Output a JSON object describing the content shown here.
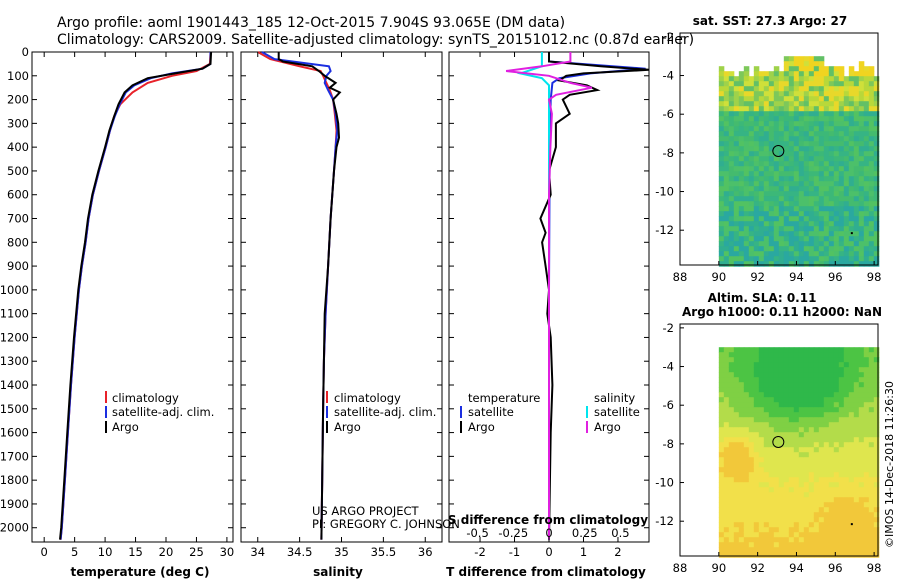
{
  "title": {
    "line1": "Argo profile: aoml 1901443_185 12-Oct-2015 7.904S 93.065E (DM data)",
    "line2": "Climatology: CARS2009. Satellite-adjusted climatology: synTS_20151012.nc (0.87d earlier)"
  },
  "colors": {
    "climatology": "#e8222a",
    "satellite": "#1b2ee0",
    "argo": "#000000",
    "sat_s": "#00e5ee",
    "argo_s": "#e020e0"
  },
  "chart_data": [
    {
      "type": "line",
      "name": "temperature-profile",
      "xlabel": "temperature (deg C)",
      "ylabel": "",
      "xlim": [
        -2,
        31
      ],
      "ylim": [
        2060,
        0
      ],
      "xticks": [
        "0",
        "5",
        "10",
        "15",
        "20",
        "25",
        "30"
      ],
      "yticks": [
        "0",
        "100",
        "200",
        "300",
        "400",
        "500",
        "600",
        "700",
        "800",
        "900",
        "1000",
        "1100",
        "1200",
        "1300",
        "1400",
        "1500",
        "1600",
        "1700",
        "1800",
        "1900",
        "2000"
      ],
      "series": [
        {
          "name": "climatology",
          "depth": [
            0,
            50,
            80,
            100,
            130,
            170,
            220,
            270,
            330,
            400,
            500,
            600,
            700,
            800,
            900,
            1000,
            1200,
            1400,
            1600,
            1800,
            2000,
            2050
          ],
          "values": [
            27.3,
            27.2,
            25,
            21,
            17,
            14.5,
            12.5,
            11.5,
            10.8,
            10.1,
            9.0,
            8.0,
            7.3,
            6.8,
            6.2,
            5.7,
            5.0,
            4.4,
            3.9,
            3.4,
            2.9,
            2.7
          ]
        },
        {
          "name": "satellite-adj. clim.",
          "depth": [
            0,
            50,
            70,
            90,
            110,
            140,
            170,
            220,
            270,
            330,
            400,
            500,
            600,
            700,
            800,
            900,
            1000,
            1200,
            1400,
            1600,
            1800,
            2000,
            2050
          ],
          "values": [
            27.3,
            27.3,
            26,
            21,
            17.5,
            14.8,
            13.4,
            12.4,
            11.6,
            10.8,
            10.1,
            9.0,
            8.0,
            7.3,
            6.8,
            6.2,
            5.7,
            5.0,
            4.4,
            3.9,
            3.4,
            2.9,
            2.7
          ]
        },
        {
          "name": "Argo",
          "depth": [
            0,
            50,
            70,
            90,
            110,
            140,
            170,
            220,
            270,
            330,
            400,
            500,
            600,
            700,
            800,
            900,
            1000,
            1200,
            1400,
            1600,
            1800,
            2000,
            2050
          ],
          "values": [
            27.4,
            27.3,
            26,
            21.5,
            17,
            14.5,
            13.2,
            12.2,
            11.5,
            10.7,
            10.0,
            8.9,
            7.9,
            7.2,
            6.7,
            6.1,
            5.6,
            4.9,
            4.3,
            3.8,
            3.3,
            2.8,
            2.6
          ]
        }
      ],
      "legend": [
        "climatology",
        "satellite-adj. clim.",
        "Argo"
      ]
    },
    {
      "type": "line",
      "name": "salinity-profile",
      "xlabel": "salinity",
      "xlim": [
        33.8,
        36.2
      ],
      "xticks": [
        "34",
        "34.5",
        "35",
        "35.5",
        "36"
      ],
      "series": [
        {
          "name": "climatology",
          "depth": [
            0,
            30,
            60,
            80,
            100,
            130,
            160,
            200,
            260,
            330,
            400,
            500,
            700,
            900,
            1100,
            1300,
            1500,
            1800,
            2050
          ],
          "values": [
            34.0,
            34.15,
            34.5,
            34.75,
            34.78,
            34.82,
            34.86,
            34.9,
            34.92,
            34.94,
            34.93,
            34.91,
            34.87,
            34.84,
            34.81,
            34.79,
            34.78,
            34.77,
            34.76
          ]
        },
        {
          "name": "satellite-adj. clim.",
          "depth": [
            0,
            30,
            60,
            80,
            100,
            130,
            160,
            200,
            260,
            330,
            400,
            500,
            700,
            900,
            1100,
            1300,
            1500,
            1800,
            2050
          ],
          "values": [
            34.05,
            34.2,
            34.85,
            34.87,
            34.82,
            34.8,
            34.84,
            34.9,
            34.93,
            34.95,
            34.93,
            34.91,
            34.87,
            34.84,
            34.81,
            34.79,
            34.78,
            34.77,
            34.76
          ]
        },
        {
          "name": "Argo",
          "depth": [
            0,
            30,
            40,
            60,
            80,
            100,
            130,
            150,
            170,
            200,
            230,
            260,
            300,
            360,
            400,
            500,
            700,
            900,
            1100,
            1300,
            1500,
            1800,
            2050
          ],
          "values": [
            34.25,
            34.25,
            34.3,
            34.65,
            34.73,
            34.8,
            34.93,
            34.86,
            34.98,
            34.9,
            34.92,
            34.94,
            34.96,
            34.97,
            34.94,
            34.91,
            34.87,
            34.84,
            34.8,
            34.79,
            34.78,
            34.77,
            34.76
          ]
        }
      ],
      "legend": [
        "climatology",
        "satellite-adj. clim.",
        "Argo"
      ],
      "credit": [
        "US ARGO PROJECT",
        "PI: GREGORY C. JOHNSON"
      ]
    },
    {
      "type": "line",
      "name": "difference-profile",
      "xlabel": "T difference from climatology",
      "xlabel2": "S difference from climatology",
      "xlim": [
        -2.9,
        2.9
      ],
      "xticks": [
        "-2",
        "-1",
        "0",
        "1",
        "2"
      ],
      "s_xticks": [
        "-0.5",
        "-0.25",
        "0",
        "0.25",
        "0.5"
      ],
      "series": [
        {
          "name": "T satellite",
          "depth": [
            0,
            40,
            70,
            90,
            110,
            130,
            200,
            400,
            1000,
            2050
          ],
          "values": [
            0.0,
            0.0,
            2.8,
            1.2,
            0.3,
            0.1,
            0.05,
            0.02,
            0.0,
            0.0
          ]
        },
        {
          "name": "T Argo",
          "depth": [
            0,
            40,
            60,
            75,
            90,
            100,
            120,
            140,
            160,
            180,
            200,
            260,
            300,
            400,
            500,
            600,
            700,
            760,
            800,
            900,
            1000,
            1100,
            1200,
            1400,
            1600,
            2050
          ],
          "values": [
            0.0,
            0.0,
            1.5,
            2.9,
            1.0,
            0.5,
            0.3,
            1.1,
            1.4,
            0.6,
            0.4,
            0.6,
            0.2,
            0.2,
            0.0,
            0.05,
            -0.25,
            -0.1,
            -0.2,
            -0.1,
            0.0,
            -0.05,
            0.05,
            0.1,
            0.05,
            0.0
          ]
        },
        {
          "name": "S satellite",
          "depth": [
            0,
            60,
            90,
            110,
            140,
            200,
            400,
            1000,
            2050
          ],
          "values": [
            -0.05,
            -0.05,
            -0.2,
            -0.05,
            0.0,
            0.0,
            0.0,
            0.0,
            0.0
          ]
        },
        {
          "name": "S Argo",
          "depth": [
            0,
            40,
            60,
            80,
            100,
            130,
            150,
            180,
            200,
            260,
            400,
            600,
            1000,
            2050
          ],
          "values": [
            0.15,
            0.15,
            -0.05,
            -0.3,
            0.0,
            0.15,
            0.3,
            0.05,
            0.0,
            0.02,
            0.01,
            0.0,
            0.0,
            0.0
          ]
        }
      ],
      "legend_left_title": "temperature",
      "legend_right_title": "salinity",
      "legend_left": [
        "satellite",
        "Argo"
      ],
      "legend_right": [
        "satellite",
        "Argo"
      ]
    },
    {
      "type": "heatmap",
      "name": "sst-map",
      "title": "sat. SST: 27.3 Argo: 27",
      "xticks": [
        "88",
        "90",
        "92",
        "94",
        "96",
        "98"
      ],
      "yticks": [
        "-2",
        "-4",
        "-6",
        "-8",
        "-10",
        "-12"
      ],
      "xlim": [
        88,
        98.2
      ],
      "ylim": [
        -13.8,
        -1.8
      ],
      "argo_lon": 93.065,
      "argo_lat": -7.904
    },
    {
      "type": "heatmap",
      "name": "sla-map",
      "title": "Altim. SLA: 0.11",
      "subtitle": "Argo h1000: 0.11 h2000: NaN",
      "xticks": [
        "88",
        "90",
        "92",
        "94",
        "96",
        "98"
      ],
      "yticks": [
        "-2",
        "-4",
        "-6",
        "-8",
        "-10",
        "-12"
      ],
      "xlim": [
        88,
        98.2
      ],
      "ylim": [
        -13.8,
        -1.8
      ],
      "argo_lon": 93.065,
      "argo_lat": -7.904
    }
  ],
  "stamp": "©IMOS 14-Dec-2018 11:26:30"
}
